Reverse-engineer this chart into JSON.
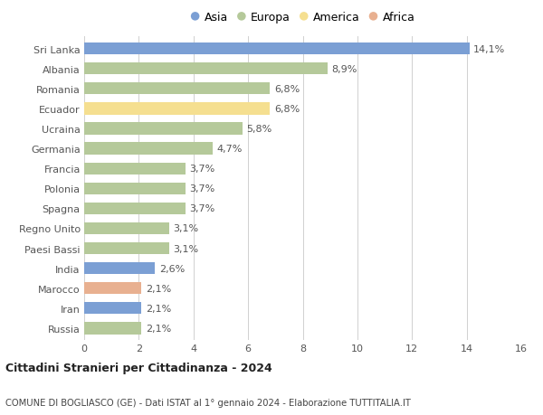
{
  "categories": [
    "Sri Lanka",
    "Albania",
    "Romania",
    "Ecuador",
    "Ucraina",
    "Germania",
    "Francia",
    "Polonia",
    "Spagna",
    "Regno Unito",
    "Paesi Bassi",
    "India",
    "Marocco",
    "Iran",
    "Russia"
  ],
  "values": [
    14.1,
    8.9,
    6.8,
    6.8,
    5.8,
    4.7,
    3.7,
    3.7,
    3.7,
    3.1,
    3.1,
    2.6,
    2.1,
    2.1,
    2.1
  ],
  "labels": [
    "14,1%",
    "8,9%",
    "6,8%",
    "6,8%",
    "5,8%",
    "4,7%",
    "3,7%",
    "3,7%",
    "3,7%",
    "3,1%",
    "3,1%",
    "2,6%",
    "2,1%",
    "2,1%",
    "2,1%"
  ],
  "continents": [
    "Asia",
    "Europa",
    "Europa",
    "America",
    "Europa",
    "Europa",
    "Europa",
    "Europa",
    "Europa",
    "Europa",
    "Europa",
    "Asia",
    "Africa",
    "Asia",
    "Europa"
  ],
  "continent_colors": {
    "Asia": "#7b9fd4",
    "Europa": "#b5c99a",
    "America": "#f5df90",
    "Africa": "#e8b090"
  },
  "legend_order": [
    "Asia",
    "Europa",
    "America",
    "Africa"
  ],
  "xlim": [
    0,
    16
  ],
  "xticks": [
    0,
    2,
    4,
    6,
    8,
    10,
    12,
    14,
    16
  ],
  "title_bold": "Cittadini Stranieri per Cittadinanza - 2024",
  "subtitle": "COMUNE DI BOGLIASCO (GE) - Dati ISTAT al 1° gennaio 2024 - Elaborazione TUTTITALIA.IT",
  "background_color": "#ffffff",
  "grid_color": "#d0d0d0",
  "bar_height": 0.6,
  "label_fontsize": 8,
  "ytick_fontsize": 8,
  "xtick_fontsize": 8
}
